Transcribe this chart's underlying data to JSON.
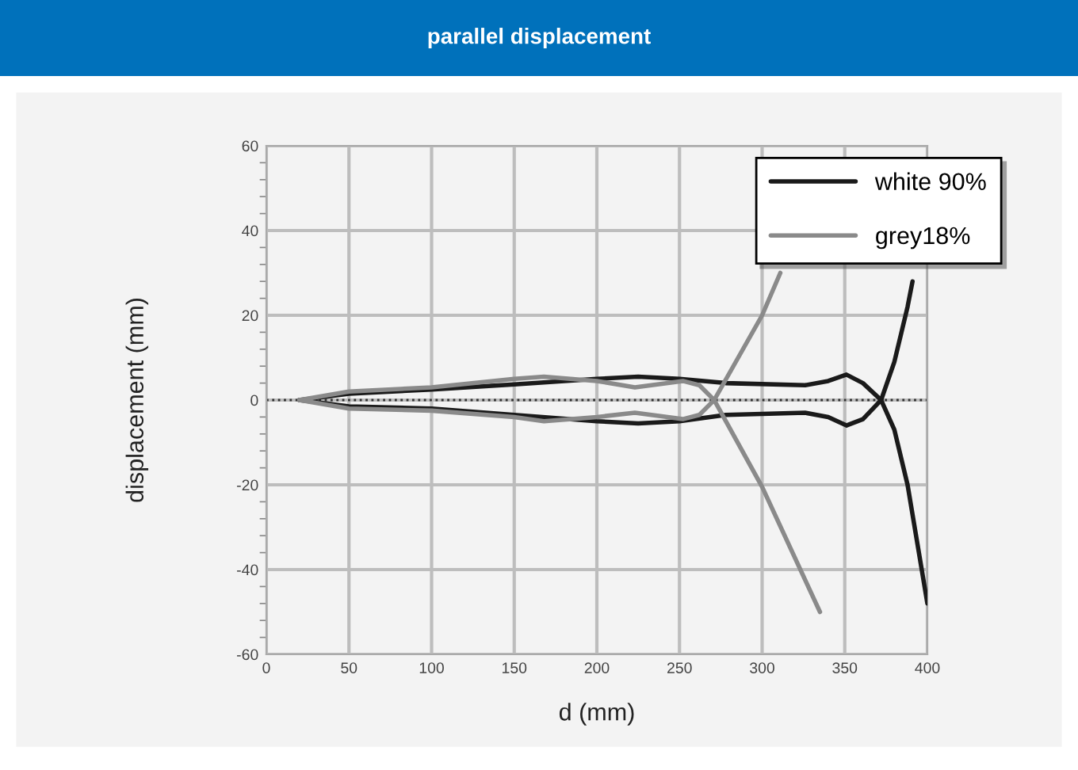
{
  "chart_data": {
    "type": "line",
    "title": "parallel displacement",
    "xlabel": "d (mm)",
    "ylabel": "displacement (mm)",
    "xlim": [
      0,
      400
    ],
    "xticks": [
      0,
      50,
      100,
      150,
      200,
      250,
      300,
      350,
      400
    ],
    "ylim": [
      -60,
      60
    ],
    "yticks": [
      -60,
      -40,
      -20,
      0,
      20,
      40,
      60
    ],
    "grid": true,
    "legend": "top right",
    "marker": "none",
    "line_style": "solid",
    "ref_lines": [
      {
        "axis": "y",
        "value": 0,
        "color": "#333333",
        "line_style": "dotted"
      }
    ],
    "series": [
      {
        "name": "white 90%",
        "color": "#1a1a1a",
        "x": [
          20,
          50,
          100,
          150,
          200,
          225,
          250,
          278,
          326,
          340,
          351,
          361,
          372,
          380,
          388,
          391
        ],
        "values": [
          0,
          1.5,
          2.5,
          3.7,
          5,
          5.5,
          5,
          4,
          3.5,
          4.5,
          6,
          4,
          0,
          9,
          22,
          28
        ]
      },
      {
        "color": "#1a1a1a",
        "x": [
          20,
          50,
          100,
          150,
          200,
          225,
          250,
          278,
          326,
          340,
          351,
          361,
          372,
          380,
          388,
          400
        ],
        "values": [
          0,
          -1.5,
          -2,
          -3.5,
          -5,
          -5.5,
          -5,
          -3.5,
          -3,
          -4,
          -6,
          -4.5,
          0,
          -7,
          -20,
          -48
        ]
      },
      {
        "name": "grey18%",
        "color": "#8a8a8a",
        "x": [
          20,
          50,
          100,
          150,
          168,
          200,
          223,
          252,
          262,
          271,
          300,
          311
        ],
        "values": [
          0,
          2,
          3,
          5,
          5.5,
          4.5,
          3,
          4.5,
          3.5,
          0,
          20,
          30
        ]
      },
      {
        "color": "#8a8a8a",
        "x": [
          20,
          50,
          100,
          150,
          168,
          200,
          223,
          252,
          262,
          271,
          300,
          335
        ],
        "values": [
          0,
          -2,
          -2.5,
          -4,
          -5,
          -4,
          -3,
          -4.5,
          -3.5,
          0,
          -20.5,
          -50
        ]
      }
    ]
  }
}
